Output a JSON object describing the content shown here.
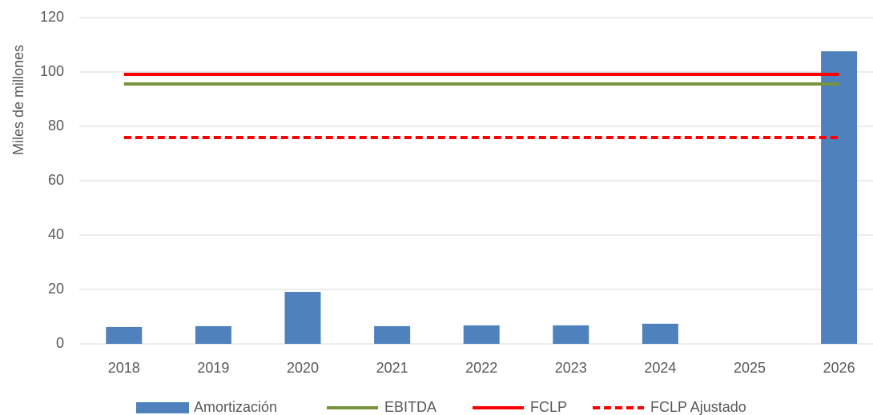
{
  "chart_data": {
    "type": "bar",
    "y_label": "Miles de millones",
    "categories": [
      "2018",
      "2019",
      "2020",
      "2021",
      "2022",
      "2023",
      "2024",
      "2025",
      "2026"
    ],
    "series": [
      {
        "name": "Amortización",
        "type": "bar",
        "color": "#4f81bd",
        "values": [
          6.2,
          6.5,
          19.1,
          6.5,
          6.8,
          6.8,
          7.4,
          null,
          107.6
        ]
      },
      {
        "name": "EBITDA",
        "type": "line",
        "color": "#77933c",
        "dashed": false,
        "values": [
          95.6,
          95.6,
          95.6,
          95.6,
          95.6,
          95.6,
          95.6,
          95.6,
          95.6
        ]
      },
      {
        "name": "FCLP",
        "type": "line",
        "color": "#ff0000",
        "dashed": false,
        "values": [
          99.1,
          99.1,
          99.1,
          99.1,
          99.1,
          99.1,
          99.1,
          99.1,
          99.1
        ]
      },
      {
        "name": "FCLP Ajustado",
        "type": "line",
        "color": "#ff0000",
        "dashed": true,
        "values": [
          75.9,
          75.9,
          75.9,
          75.9,
          75.9,
          75.9,
          75.9,
          75.9,
          75.9
        ]
      }
    ],
    "ylim": [
      0,
      120
    ],
    "yticks": [
      0,
      20,
      40,
      60,
      80,
      100,
      120
    ],
    "grid": true,
    "legend": "bottom"
  }
}
